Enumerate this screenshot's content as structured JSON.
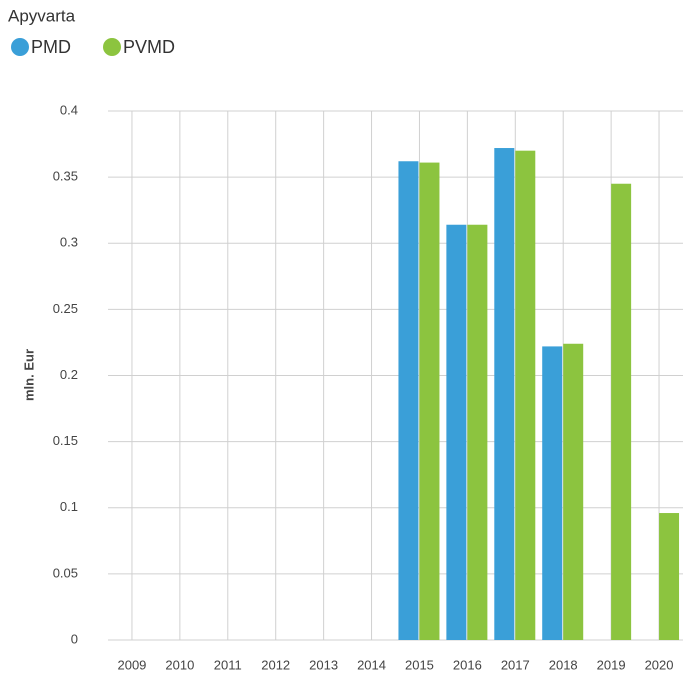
{
  "chart_data": {
    "type": "bar",
    "title": "Apyvarta",
    "ylabel": "mln. Eur",
    "categories": [
      "2009",
      "2010",
      "2011",
      "2012",
      "2013",
      "2014",
      "2015",
      "2016",
      "2017",
      "2018",
      "2019",
      "2020"
    ],
    "series": [
      {
        "name": "PMD",
        "color": "#3a9fd8",
        "values": [
          null,
          null,
          null,
          null,
          null,
          null,
          0.362,
          0.314,
          0.372,
          0.222,
          null,
          null
        ]
      },
      {
        "name": "PVMD",
        "color": "#8cc43f",
        "values": [
          null,
          null,
          null,
          null,
          null,
          null,
          0.361,
          0.314,
          0.37,
          0.224,
          0.345,
          0.096
        ]
      }
    ],
    "ylim": [
      0,
      0.4
    ],
    "yticks": [
      0,
      0.05,
      0.1,
      0.15,
      0.2,
      0.25,
      0.3,
      0.35,
      0.4
    ],
    "grid": true
  }
}
